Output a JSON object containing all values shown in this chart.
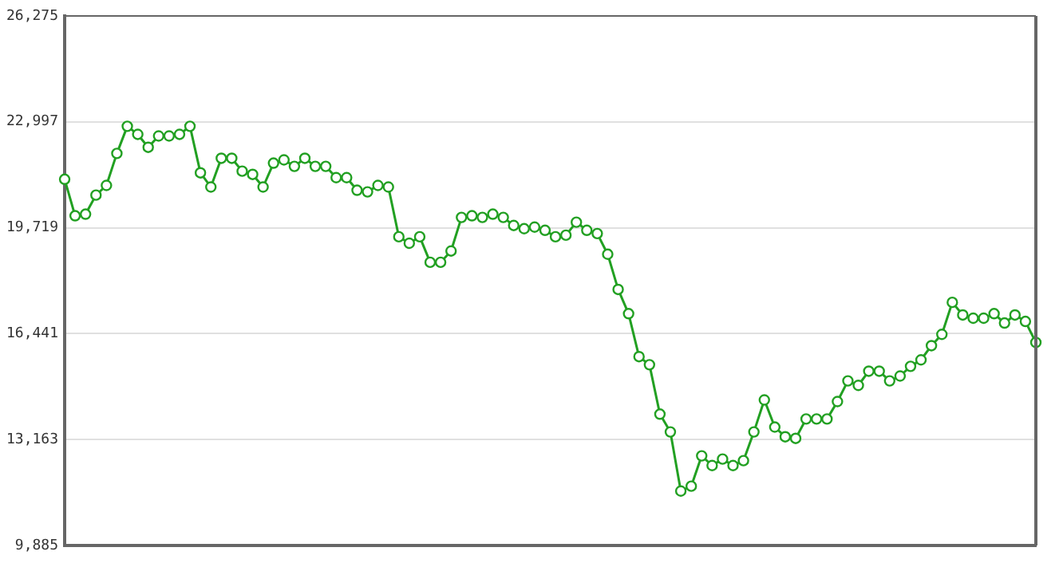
{
  "chart_data": {
    "type": "line",
    "categories": [
      null,
      null,
      null,
      null,
      null,
      null,
      null,
      null,
      null,
      null,
      null,
      null,
      null,
      null,
      null,
      null,
      null,
      null,
      null,
      null,
      null,
      null,
      null,
      null,
      null,
      null,
      null,
      null,
      null,
      null,
      null,
      null,
      null,
      null,
      null,
      null,
      null,
      null,
      null,
      null,
      null,
      null,
      null,
      null,
      null,
      null,
      null,
      null,
      null,
      null,
      null,
      null,
      null,
      null,
      null,
      null,
      null,
      null,
      null,
      null,
      null,
      null,
      null,
      null,
      null,
      null,
      null,
      null,
      null,
      null,
      null,
      null,
      null,
      null,
      null,
      null,
      null,
      null,
      null,
      null,
      null,
      null,
      null,
      null,
      null,
      null,
      null,
      null,
      null,
      null,
      null,
      null,
      null,
      null
    ],
    "series": [
      {
        "color": "#22a022",
        "values": [
          21220,
          20090,
          20140,
          20730,
          21030,
          22020,
          22860,
          22610,
          22210,
          22560,
          22560,
          22610,
          22860,
          21420,
          20980,
          21870,
          21870,
          21470,
          21370,
          20980,
          21720,
          21820,
          21620,
          21870,
          21620,
          21620,
          21270,
          21270,
          20880,
          20830,
          21030,
          20980,
          19440,
          19240,
          19440,
          18650,
          18650,
          19000,
          20040,
          20090,
          20040,
          20140,
          20040,
          19790,
          19690,
          19740,
          19640,
          19440,
          19490,
          19890,
          19640,
          19540,
          18900,
          17810,
          17060,
          15730,
          15480,
          13950,
          13400,
          11570,
          11720,
          12660,
          12360,
          12560,
          12360,
          12510,
          13400,
          14390,
          13550,
          13250,
          13200,
          13800,
          13800,
          13800,
          14340,
          14980,
          14840,
          15280,
          15280,
          14980,
          15130,
          15430,
          15630,
          16070,
          16420,
          17410,
          17020,
          16920,
          16920,
          17060,
          16770,
          17020,
          16820,
          16170
        ]
      }
    ],
    "ylim": [
      9885,
      26275
    ],
    "yticks": [
      {
        "value": 9885,
        "label": "9,885"
      },
      {
        "value": 13163,
        "label": "13,163"
      },
      {
        "value": 16441,
        "label": "16,441"
      },
      {
        "value": 19719,
        "label": "19,719"
      },
      {
        "value": 22997,
        "label": "22,997"
      },
      {
        "value": 26275,
        "label": "26,275"
      }
    ],
    "grid": "y",
    "marker": "circle",
    "line_style": "solid",
    "tick_labels": "y",
    "legend": false
  }
}
